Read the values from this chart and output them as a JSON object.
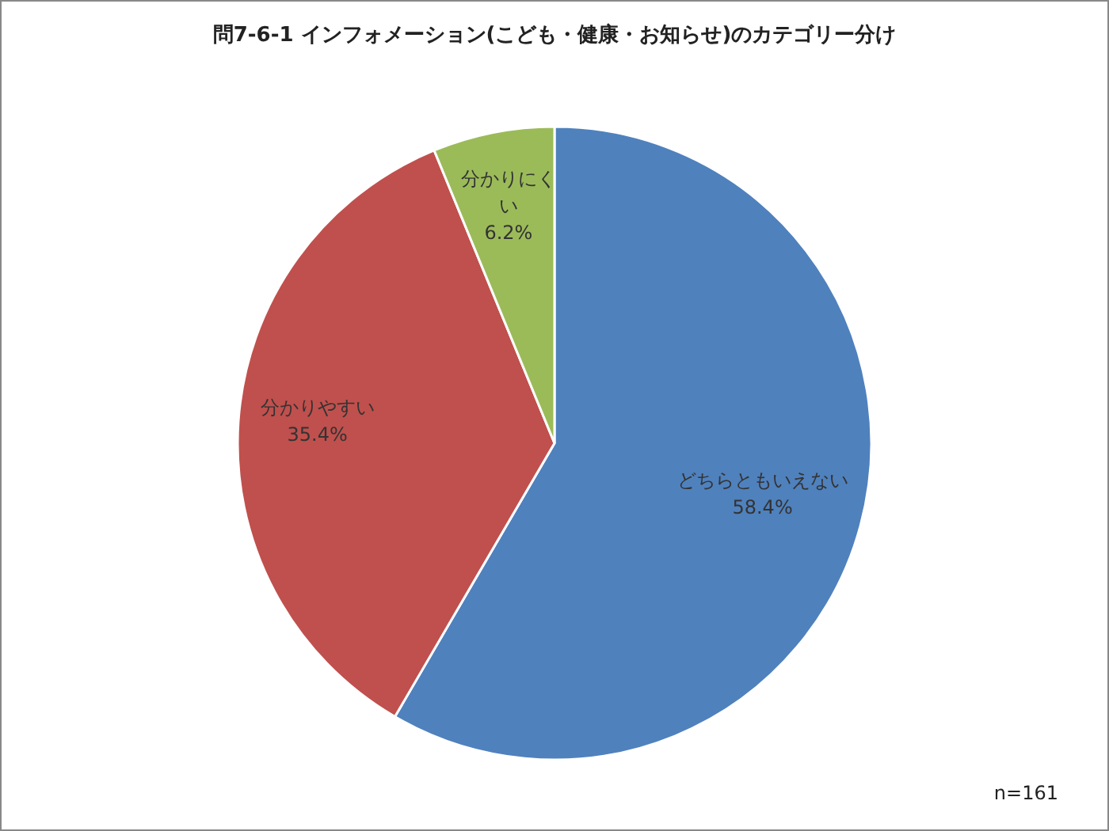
{
  "chart_data": {
    "type": "pie",
    "title": "問7-6-1  インフォメーション(こども・健康・お知らせ)のカテゴリー分け",
    "categories": [
      "どちらともいえない",
      "分かりやすい",
      "分かりにくい"
    ],
    "values": [
      58.4,
      35.4,
      6.2
    ],
    "colors": [
      "#4f81bd",
      "#c0504d",
      "#9bbb59"
    ],
    "value_labels": [
      "58.4%",
      "35.4%",
      "6.2%"
    ],
    "annotations": [
      "n=161"
    ]
  }
}
